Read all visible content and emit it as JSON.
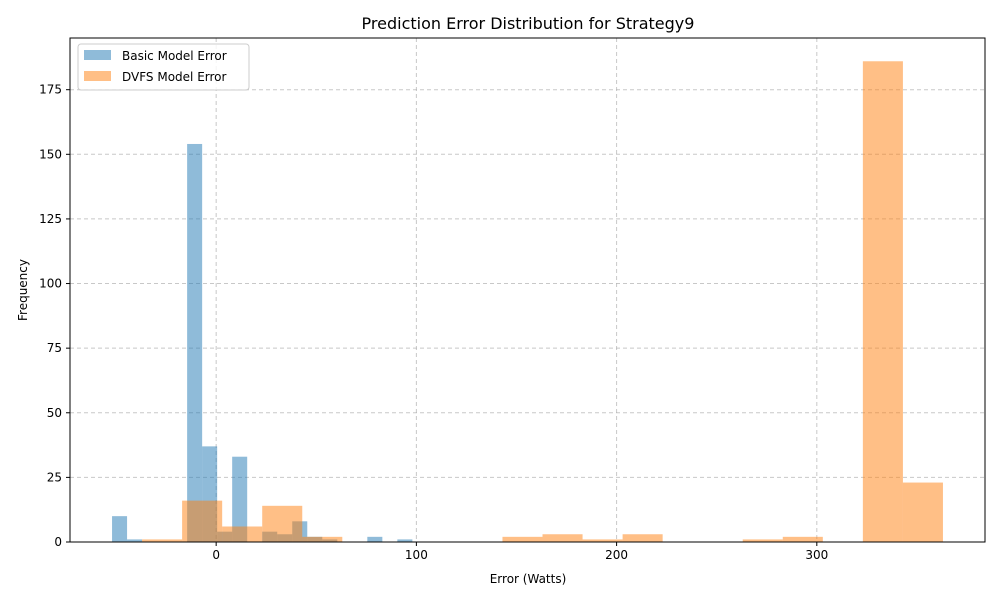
{
  "chart_data": {
    "type": "bar",
    "title": "Prediction Error Distribution for Strategy9",
    "xlabel": "Error (Watts)",
    "ylabel": "Frequency",
    "xlim": [
      -73,
      384
    ],
    "ylim": [
      0,
      195
    ],
    "xticks": [
      0,
      100,
      200,
      300
    ],
    "yticks": [
      0,
      25,
      50,
      75,
      100,
      125,
      150,
      175
    ],
    "grid": true,
    "legend_position": "top-left",
    "series": [
      {
        "name": "Basic Model Error",
        "color": "#1f77b4",
        "alpha": 0.5,
        "bins": [
          {
            "x0": -52,
            "x1": -44.5,
            "value": 10
          },
          {
            "x0": -44.5,
            "x1": -37,
            "value": 1
          },
          {
            "x0": -37,
            "x1": -29.5,
            "value": 0
          },
          {
            "x0": -29.5,
            "x1": -22,
            "value": 0
          },
          {
            "x0": -22,
            "x1": -14.5,
            "value": 0
          },
          {
            "x0": -14.5,
            "x1": -7,
            "value": 154
          },
          {
            "x0": -7,
            "x1": 0.5,
            "value": 37
          },
          {
            "x0": 0.5,
            "x1": 8,
            "value": 4
          },
          {
            "x0": 8,
            "x1": 15.5,
            "value": 33
          },
          {
            "x0": 15.5,
            "x1": 23,
            "value": 0
          },
          {
            "x0": 23,
            "x1": 30.5,
            "value": 4
          },
          {
            "x0": 30.5,
            "x1": 38,
            "value": 3
          },
          {
            "x0": 38,
            "x1": 45.5,
            "value": 8
          },
          {
            "x0": 45.5,
            "x1": 53,
            "value": 2
          },
          {
            "x0": 53,
            "x1": 60.5,
            "value": 1
          },
          {
            "x0": 60.5,
            "x1": 68,
            "value": 0
          },
          {
            "x0": 68,
            "x1": 75.5,
            "value": 0
          },
          {
            "x0": 75.5,
            "x1": 83,
            "value": 2
          },
          {
            "x0": 83,
            "x1": 90.5,
            "value": 0
          },
          {
            "x0": 90.5,
            "x1": 98,
            "value": 1
          }
        ]
      },
      {
        "name": "DVFS Model Error",
        "color": "#ff7f0e",
        "alpha": 0.5,
        "bins": [
          {
            "x0": -37,
            "x1": -17,
            "value": 1
          },
          {
            "x0": -17,
            "x1": 3,
            "value": 16
          },
          {
            "x0": 3,
            "x1": 23,
            "value": 6
          },
          {
            "x0": 23,
            "x1": 43,
            "value": 14
          },
          {
            "x0": 43,
            "x1": 63,
            "value": 2
          },
          {
            "x0": 63,
            "x1": 83,
            "value": 0
          },
          {
            "x0": 83,
            "x1": 103,
            "value": 0
          },
          {
            "x0": 103,
            "x1": 123,
            "value": 0
          },
          {
            "x0": 123,
            "x1": 143,
            "value": 0
          },
          {
            "x0": 143,
            "x1": 163,
            "value": 2
          },
          {
            "x0": 163,
            "x1": 183,
            "value": 3
          },
          {
            "x0": 183,
            "x1": 203,
            "value": 1
          },
          {
            "x0": 203,
            "x1": 223,
            "value": 3
          },
          {
            "x0": 223,
            "x1": 243,
            "value": 0
          },
          {
            "x0": 243,
            "x1": 263,
            "value": 0
          },
          {
            "x0": 263,
            "x1": 283,
            "value": 1
          },
          {
            "x0": 283,
            "x1": 303,
            "value": 2
          },
          {
            "x0": 303,
            "x1": 323,
            "value": 0
          },
          {
            "x0": 323,
            "x1": 343,
            "value": 186
          },
          {
            "x0": 343,
            "x1": 363,
            "value": 23
          }
        ]
      }
    ]
  }
}
